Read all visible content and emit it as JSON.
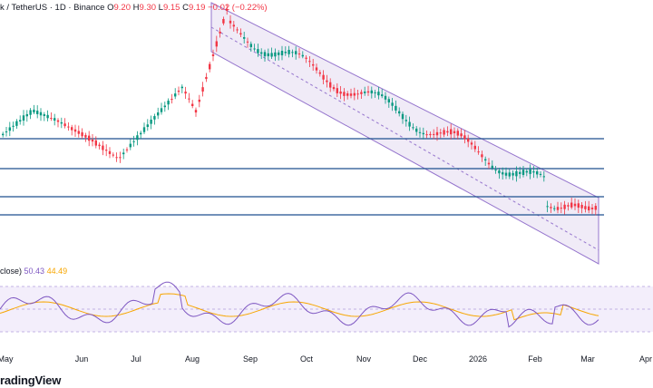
{
  "header": {
    "pair": "k / TetherUS · 1D · Binance",
    "o_label": "O",
    "o": "9.20",
    "h_label": "H",
    "h": "9.30",
    "l_label": "L",
    "l": "9.15",
    "c_label": "C",
    "c": "9.19",
    "chg": "−0.02 (−0.22%)"
  },
  "rsi_legend": {
    "label": "close)",
    "v1": "50.43",
    "v2": "44.49"
  },
  "brand": "radingView",
  "colors": {
    "up": "#089981",
    "down": "#f23645",
    "level": "#1e4f8f",
    "channel": "#9575cd",
    "channel_fill": "#ede7f6",
    "rsi": "#7e57c2",
    "rsi_ma": "#f7a600"
  },
  "chart_data": [
    {
      "type": "candlestick",
      "x_ticks": [
        "May",
        "Jun",
        "Jul",
        "Aug",
        "Sep",
        "Oct",
        "Nov",
        "Dec",
        "2026",
        "Feb",
        "Mar",
        "Apr"
      ],
      "horizontal_levels": [
        "L1",
        "L2",
        "L3",
        "L4"
      ],
      "channel": "descending parallel channel",
      "last_close": 9.19
    },
    {
      "type": "line",
      "series": [
        {
          "name": "RSI",
          "last": 50.43
        },
        {
          "name": "RSI MA",
          "last": 44.49
        }
      ],
      "ylim": [
        0,
        100
      ],
      "bands": [
        30,
        50,
        70
      ]
    }
  ]
}
